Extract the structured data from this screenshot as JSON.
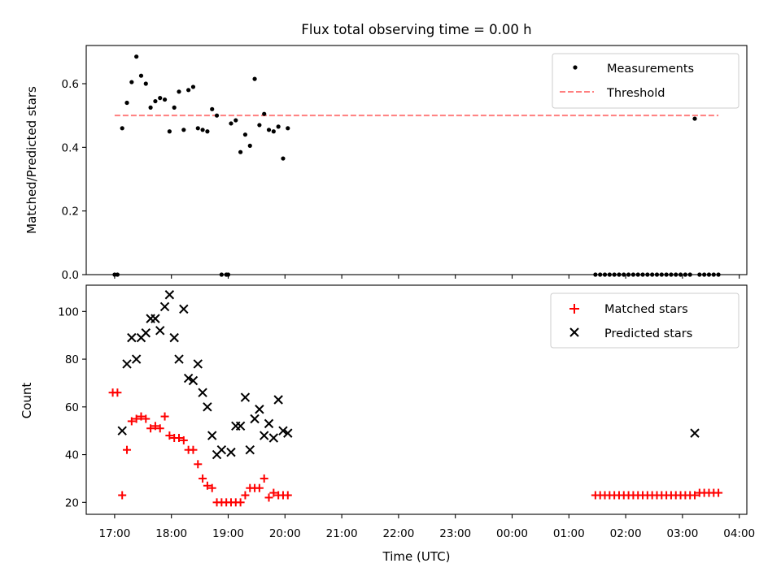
{
  "chart_data": [
    {
      "type": "scatter",
      "title": "Flux total observing time = 0.00 h",
      "xlabel": "",
      "ylabel": "Matched/Predicted stars",
      "ylim": [
        0,
        0.72
      ],
      "yticks": [
        "0.0",
        "0.2",
        "0.4",
        "0.6"
      ],
      "grid": false,
      "legend_placement": "top-right",
      "series": [
        {
          "name": "Measurements",
          "kind": "points",
          "color": "#000000",
          "x": [
            "17:00",
            "17:03",
            "17:08",
            "17:13",
            "17:18",
            "17:23",
            "17:28",
            "17:33",
            "17:38",
            "17:43",
            "17:48",
            "17:53",
            "17:58",
            "18:03",
            "18:08",
            "18:13",
            "18:18",
            "18:23",
            "18:28",
            "18:33",
            "18:38",
            "18:43",
            "18:48",
            "18:53",
            "18:58",
            "19:00",
            "19:03",
            "19:08",
            "19:13",
            "19:18",
            "19:23",
            "19:28",
            "19:33",
            "19:38",
            "19:43",
            "19:48",
            "19:53",
            "19:58",
            "20:03",
            "01:28",
            "01:33",
            "01:38",
            "01:43",
            "01:48",
            "01:53",
            "01:58",
            "02:03",
            "02:08",
            "02:13",
            "02:18",
            "02:23",
            "02:28",
            "02:33",
            "02:38",
            "02:43",
            "02:48",
            "02:53",
            "02:58",
            "03:03",
            "03:08",
            "03:13",
            "03:18",
            "03:23",
            "03:28",
            "03:33",
            "03:38"
          ],
          "y": [
            0.0,
            0.0,
            0.46,
            0.54,
            0.605,
            0.685,
            0.625,
            0.6,
            0.525,
            0.545,
            0.555,
            0.55,
            0.45,
            0.525,
            0.575,
            0.455,
            0.58,
            0.59,
            0.46,
            0.455,
            0.45,
            0.52,
            0.5,
            0.0,
            0.0,
            0.0,
            0.475,
            0.485,
            0.385,
            0.44,
            0.405,
            0.615,
            0.47,
            0.505,
            0.455,
            0.45,
            0.465,
            0.365,
            0.46,
            0.0,
            0.0,
            0.0,
            0.0,
            0.0,
            0.0,
            0.0,
            0.0,
            0.0,
            0.0,
            0.0,
            0.0,
            0.0,
            0.0,
            0.0,
            0.0,
            0.0,
            0.0,
            0.0,
            0.0,
            0.0,
            0.49,
            0.0,
            0.0,
            0.0,
            0.0,
            0.0
          ]
        },
        {
          "name": "Threshold",
          "kind": "dashed-line",
          "color": "#ff7f7f",
          "x": [
            "17:00",
            "03:38"
          ],
          "y": [
            0.5,
            0.5
          ]
        }
      ]
    },
    {
      "type": "scatter",
      "title": "",
      "xlabel": "Time (UTC)",
      "ylabel": "Count",
      "ylim": [
        15,
        111
      ],
      "yticks": [
        "20",
        "40",
        "60",
        "80",
        "100"
      ],
      "xlim": [
        "16:30",
        "04:08"
      ],
      "xticks": [
        "17:00",
        "18:00",
        "19:00",
        "20:00",
        "21:00",
        "22:00",
        "23:00",
        "00:00",
        "01:00",
        "02:00",
        "03:00",
        "04:00"
      ],
      "grid": false,
      "legend_placement": "top-right",
      "series": [
        {
          "name": "Matched stars",
          "marker": "plus",
          "color": "#ff0000",
          "x": [
            "16:58",
            "17:03",
            "17:08",
            "17:13",
            "17:18",
            "17:23",
            "17:28",
            "17:33",
            "17:38",
            "17:43",
            "17:48",
            "17:53",
            "17:58",
            "18:03",
            "18:08",
            "18:13",
            "18:18",
            "18:23",
            "18:28",
            "18:33",
            "18:38",
            "18:43",
            "18:48",
            "18:53",
            "18:58",
            "19:03",
            "19:08",
            "19:13",
            "19:18",
            "19:23",
            "19:28",
            "19:33",
            "19:38",
            "19:43",
            "19:48",
            "19:53",
            "19:58",
            "20:03",
            "01:28",
            "01:33",
            "01:38",
            "01:43",
            "01:48",
            "01:53",
            "01:58",
            "02:03",
            "02:08",
            "02:13",
            "02:18",
            "02:23",
            "02:28",
            "02:33",
            "02:38",
            "02:43",
            "02:48",
            "02:53",
            "02:58",
            "03:03",
            "03:08",
            "03:13",
            "03:18",
            "03:23",
            "03:28",
            "03:33",
            "03:38"
          ],
          "y": [
            66,
            66,
            23,
            42,
            54,
            55,
            56,
            55,
            51,
            52,
            51,
            56,
            48,
            47,
            47,
            46,
            42,
            42,
            36,
            30,
            27,
            26,
            20,
            20,
            20,
            20,
            20,
            20,
            23,
            26,
            26,
            26,
            30,
            22,
            24,
            23,
            23,
            23,
            23,
            23,
            23,
            23,
            23,
            23,
            23,
            23,
            23,
            23,
            23,
            23,
            23,
            23,
            23,
            23,
            23,
            23,
            23,
            23,
            23,
            23,
            24,
            24,
            24,
            24,
            24
          ]
        },
        {
          "name": "Predicted stars",
          "marker": "x",
          "color": "#000000",
          "x": [
            "17:08",
            "17:13",
            "17:18",
            "17:23",
            "17:28",
            "17:33",
            "17:38",
            "17:43",
            "17:48",
            "17:53",
            "17:58",
            "18:03",
            "18:08",
            "18:13",
            "18:18",
            "18:23",
            "18:28",
            "18:33",
            "18:38",
            "18:43",
            "18:48",
            "18:53",
            "19:03",
            "19:08",
            "19:13",
            "19:18",
            "19:23",
            "19:28",
            "19:33",
            "19:38",
            "19:43",
            "19:48",
            "19:53",
            "19:58",
            "20:03",
            "03:13"
          ],
          "y": [
            50,
            78,
            89,
            80,
            89,
            91,
            97,
            97,
            92,
            102,
            107,
            89,
            80,
            101,
            72,
            71,
            78,
            66,
            60,
            48,
            40,
            42,
            41,
            52,
            52,
            64,
            42,
            55,
            59,
            48,
            53,
            47,
            63,
            50,
            49,
            49
          ]
        }
      ]
    }
  ]
}
